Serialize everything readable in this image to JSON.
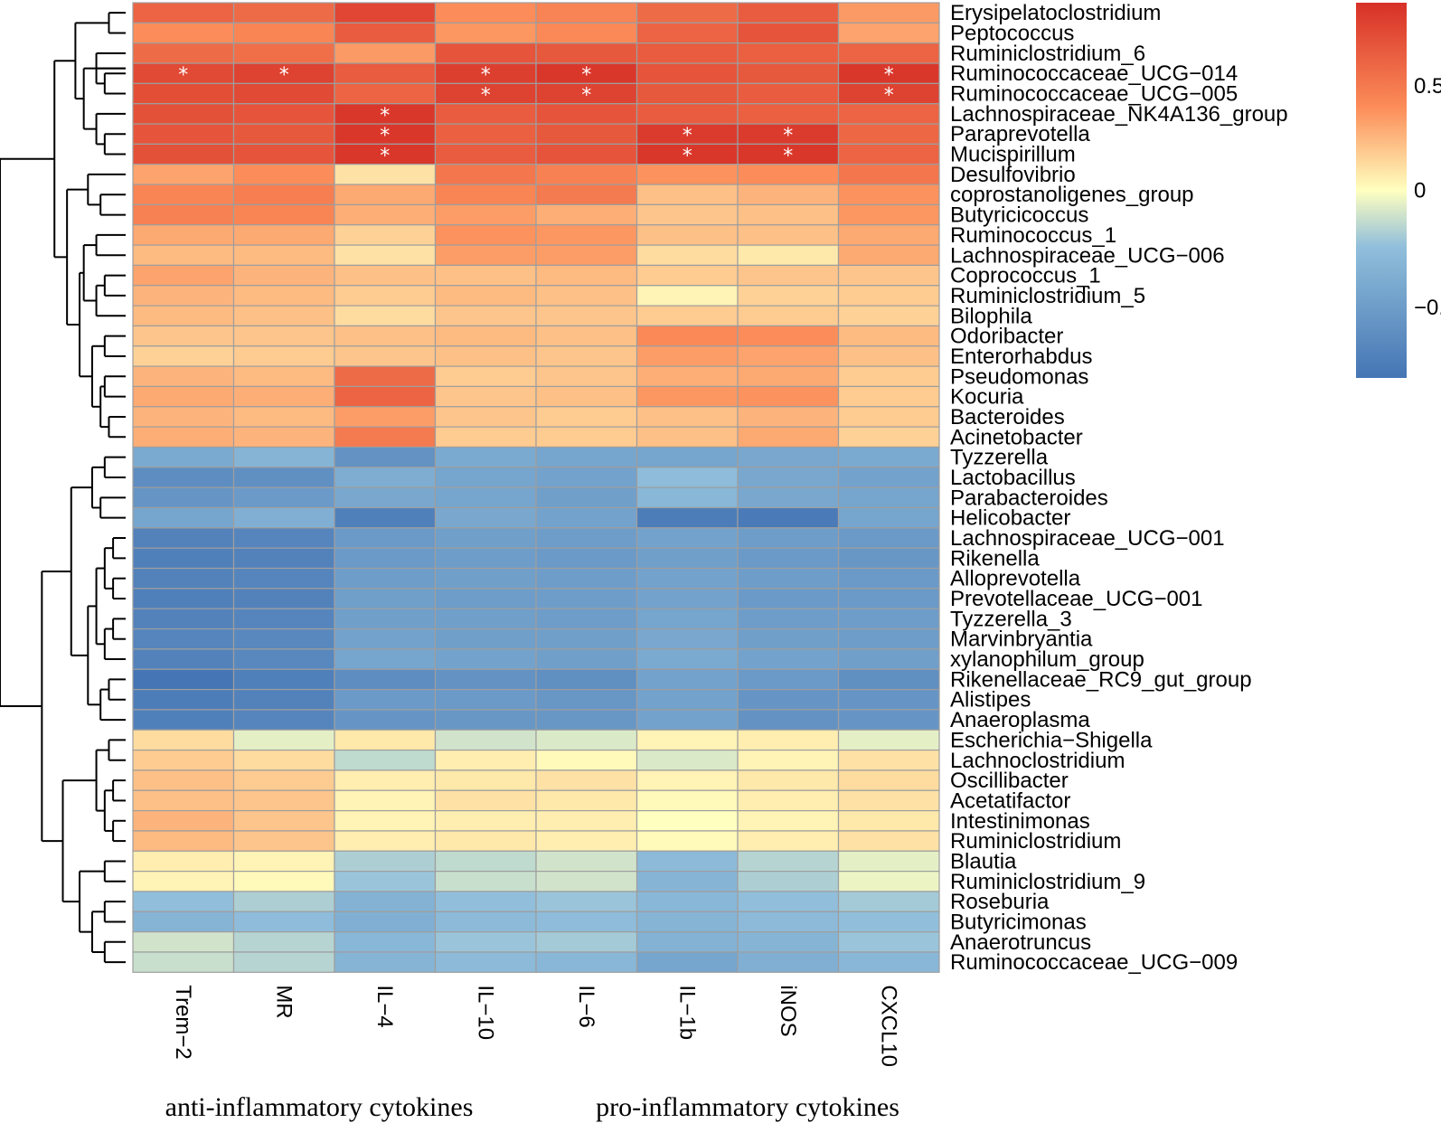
{
  "chart_data": {
    "type": "heatmap",
    "title": "",
    "columns": [
      "Trem−2",
      "MR",
      "IL−4",
      "IL−10",
      "IL−6",
      "IL−1b",
      "iNOS",
      "CXCL10"
    ],
    "rows": [
      "Erysipelatoclostridium",
      "Peptococcus",
      "Ruminiclostridium_6",
      "Ruminococcaceae_UCG−014",
      "Ruminococcaceae_UCG−005",
      "Lachnospiraceae_NK4A136_group",
      "Paraprevotella",
      "Mucispirillum",
      "Desulfovibrio",
      "coprostanoligenes_group",
      "Butyricicoccus",
      "Ruminococcus_1",
      "Lachnospiraceae_UCG−006",
      "Coprococcus_1",
      "Ruminiclostridium_5",
      "Bilophila",
      "Odoribacter",
      "Enterorhabdus",
      "Pseudomonas",
      "Kocuria",
      "Bacteroides",
      "Acinetobacter",
      "Tyzzerella",
      "Lactobacillus",
      "Parabacteroides",
      "Helicobacter",
      "Lachnospiraceae_UCG−001",
      "Rikenella",
      "Alloprevotella",
      "Prevotellaceae_UCG−001",
      "Tyzzerella_3",
      "Marvinbryantia",
      "xylanophilum_group",
      "Rikenellaceae_RC9_gut_group",
      "Alistipes",
      "Anaeroplasma",
      "Escherichia−Shigella",
      "Lachnoclostridium",
      "Oscillibacter",
      "Acetatifactor",
      "Intestinimonas",
      "Ruminiclostridium",
      "Blautia",
      "Ruminiclostridium_9",
      "Roseburia",
      "Butyricimonas",
      "Anaerotruncus",
      "Ruminococcaceae_UCG−009"
    ],
    "values": [
      [
        0.62,
        0.58,
        0.78,
        0.4,
        0.45,
        0.58,
        0.66,
        0.35
      ],
      [
        0.4,
        0.44,
        0.66,
        0.36,
        0.42,
        0.62,
        0.7,
        0.32
      ],
      [
        0.58,
        0.56,
        0.35,
        0.7,
        0.68,
        0.66,
        0.64,
        0.62
      ],
      [
        0.76,
        0.8,
        0.66,
        0.82,
        0.86,
        0.7,
        0.68,
        0.86
      ],
      [
        0.74,
        0.76,
        0.62,
        0.8,
        0.8,
        0.68,
        0.66,
        0.8
      ],
      [
        0.72,
        0.7,
        0.86,
        0.66,
        0.7,
        0.66,
        0.64,
        0.62
      ],
      [
        0.7,
        0.68,
        0.86,
        0.64,
        0.68,
        0.84,
        0.84,
        0.6
      ],
      [
        0.72,
        0.7,
        0.86,
        0.66,
        0.7,
        0.86,
        0.86,
        0.62
      ],
      [
        0.32,
        0.4,
        0.1,
        0.52,
        0.46,
        0.38,
        0.4,
        0.52
      ],
      [
        0.44,
        0.48,
        0.3,
        0.44,
        0.5,
        0.22,
        0.26,
        0.38
      ],
      [
        0.46,
        0.44,
        0.28,
        0.34,
        0.28,
        0.2,
        0.22,
        0.36
      ],
      [
        0.3,
        0.3,
        0.16,
        0.38,
        0.36,
        0.22,
        0.22,
        0.3
      ],
      [
        0.24,
        0.24,
        0.1,
        0.34,
        0.34,
        0.12,
        0.08,
        0.3
      ],
      [
        0.32,
        0.26,
        0.22,
        0.22,
        0.24,
        0.18,
        0.2,
        0.2
      ],
      [
        0.26,
        0.24,
        0.18,
        0.24,
        0.22,
        0.04,
        0.16,
        0.18
      ],
      [
        0.24,
        0.22,
        0.12,
        0.2,
        0.2,
        0.18,
        0.18,
        0.16
      ],
      [
        0.2,
        0.2,
        0.22,
        0.24,
        0.22,
        0.42,
        0.4,
        0.24
      ],
      [
        0.16,
        0.18,
        0.2,
        0.22,
        0.2,
        0.34,
        0.32,
        0.22
      ],
      [
        0.26,
        0.24,
        0.58,
        0.18,
        0.2,
        0.28,
        0.3,
        0.18
      ],
      [
        0.3,
        0.28,
        0.62,
        0.2,
        0.22,
        0.36,
        0.38,
        0.18
      ],
      [
        0.26,
        0.24,
        0.34,
        0.2,
        0.18,
        0.22,
        0.26,
        0.18
      ],
      [
        0.28,
        0.26,
        0.5,
        0.18,
        0.18,
        0.22,
        0.3,
        0.16
      ],
      [
        -0.4,
        -0.32,
        -0.58,
        -0.4,
        -0.44,
        -0.44,
        -0.42,
        -0.4
      ],
      [
        -0.62,
        -0.6,
        -0.38,
        -0.44,
        -0.46,
        -0.26,
        -0.42,
        -0.46
      ],
      [
        -0.56,
        -0.52,
        -0.42,
        -0.44,
        -0.48,
        -0.3,
        -0.42,
        -0.44
      ],
      [
        -0.44,
        -0.36,
        -0.72,
        -0.42,
        -0.46,
        -0.74,
        -0.76,
        -0.44
      ],
      [
        -0.7,
        -0.68,
        -0.52,
        -0.48,
        -0.5,
        -0.46,
        -0.5,
        -0.52
      ],
      [
        -0.72,
        -0.7,
        -0.52,
        -0.5,
        -0.52,
        -0.48,
        -0.52,
        -0.54
      ],
      [
        -0.7,
        -0.68,
        -0.5,
        -0.48,
        -0.5,
        -0.46,
        -0.5,
        -0.52
      ],
      [
        -0.72,
        -0.7,
        -0.48,
        -0.5,
        -0.5,
        -0.46,
        -0.52,
        -0.52
      ],
      [
        -0.7,
        -0.68,
        -0.48,
        -0.48,
        -0.5,
        -0.44,
        -0.5,
        -0.5
      ],
      [
        -0.68,
        -0.66,
        -0.46,
        -0.48,
        -0.48,
        -0.42,
        -0.48,
        -0.5
      ],
      [
        -0.7,
        -0.66,
        -0.44,
        -0.46,
        -0.48,
        -0.4,
        -0.46,
        -0.48
      ],
      [
        -0.8,
        -0.72,
        -0.62,
        -0.58,
        -0.6,
        -0.46,
        -0.52,
        -0.6
      ],
      [
        -0.74,
        -0.7,
        -0.52,
        -0.52,
        -0.54,
        -0.46,
        -0.56,
        -0.56
      ],
      [
        -0.72,
        -0.68,
        -0.56,
        -0.54,
        -0.54,
        -0.46,
        -0.58,
        -0.56
      ],
      [
        0.12,
        -0.06,
        0.08,
        -0.1,
        -0.08,
        0.04,
        0.06,
        -0.06
      ],
      [
        0.18,
        0.12,
        -0.14,
        0.06,
        0.02,
        -0.08,
        0.04,
        0.1
      ],
      [
        0.22,
        0.18,
        0.06,
        0.08,
        0.1,
        0.04,
        0.08,
        0.12
      ],
      [
        0.22,
        0.2,
        0.04,
        0.1,
        0.08,
        0.02,
        0.06,
        0.1
      ],
      [
        0.26,
        0.2,
        0.04,
        0.06,
        0.06,
        0.0,
        0.04,
        0.08
      ],
      [
        0.24,
        0.2,
        0.06,
        0.08,
        0.06,
        0.02,
        0.06,
        0.1
      ],
      [
        0.06,
        0.04,
        -0.18,
        -0.14,
        -0.1,
        -0.28,
        -0.16,
        -0.06
      ],
      [
        0.04,
        0.02,
        -0.22,
        -0.12,
        -0.1,
        -0.32,
        -0.18,
        -0.04
      ],
      [
        -0.24,
        -0.18,
        -0.34,
        -0.24,
        -0.22,
        -0.3,
        -0.24,
        -0.2
      ],
      [
        -0.32,
        -0.26,
        -0.36,
        -0.28,
        -0.26,
        -0.32,
        -0.28,
        -0.24
      ],
      [
        -0.1,
        -0.16,
        -0.3,
        -0.22,
        -0.2,
        -0.34,
        -0.32,
        -0.22
      ],
      [
        -0.12,
        -0.16,
        -0.32,
        -0.28,
        -0.3,
        -0.44,
        -0.36,
        -0.3
      ]
    ],
    "significance": [
      {
        "row": 3,
        "col": 0,
        "label": "*"
      },
      {
        "row": 3,
        "col": 1,
        "label": "*"
      },
      {
        "row": 3,
        "col": 3,
        "label": "*"
      },
      {
        "row": 3,
        "col": 4,
        "label": "*"
      },
      {
        "row": 3,
        "col": 7,
        "label": "*"
      },
      {
        "row": 4,
        "col": 3,
        "label": "*"
      },
      {
        "row": 4,
        "col": 4,
        "label": "*"
      },
      {
        "row": 4,
        "col": 7,
        "label": "*"
      },
      {
        "row": 5,
        "col": 2,
        "label": "*"
      },
      {
        "row": 6,
        "col": 2,
        "label": "*"
      },
      {
        "row": 6,
        "col": 5,
        "label": "*"
      },
      {
        "row": 6,
        "col": 6,
        "label": "*"
      },
      {
        "row": 7,
        "col": 2,
        "label": "*"
      },
      {
        "row": 7,
        "col": 5,
        "label": "*"
      },
      {
        "row": 7,
        "col": 6,
        "label": "*"
      }
    ],
    "colorbar": {
      "range": [
        -0.8,
        0.9
      ],
      "ticks": [
        {
          "value": 0.5,
          "label": "0.5"
        },
        {
          "value": 0,
          "label": "0"
        },
        {
          "value": -0.5,
          "label": "−0.5"
        }
      ],
      "low_color": "#4575b4",
      "mid_color": "#ffffbf",
      "high_color": "#d73027"
    },
    "column_groups": [
      {
        "label": "anti-inflammatory cytokines",
        "columns": [
          "Trem−2",
          "MR",
          "IL−4",
          "IL−10"
        ]
      },
      {
        "label": "pro-inflammatory cytokines",
        "columns": [
          "IL−6",
          "IL−1b",
          "iNOS",
          "CXCL10"
        ]
      }
    ],
    "dendrogram": {
      "merges": [
        [
          [
            0,
            1
          ],
          8
        ],
        [
          [
            3,
            4
          ],
          10
        ],
        [
          [
            2,
            "m1"
          ],
          14
        ],
        [
          [
            "m2"
          ],
          0
        ],
        [
          [
            6,
            7
          ],
          10
        ],
        [
          [
            5,
            "m4"
          ],
          14
        ],
        [
          [
            "m3",
            "m5"
          ],
          20
        ],
        [
          [
            "m0",
            "m6"
          ],
          24
        ],
        [
          [
            9,
            10
          ],
          12
        ],
        [
          [
            8,
            "m8"
          ],
          18
        ],
        [
          [
            11,
            12
          ],
          14
        ],
        [
          [
            13,
            14
          ],
          10
        ],
        [
          [
            "m11",
            15
          ],
          14
        ],
        [
          [
            "m10",
            "m12"
          ],
          20
        ],
        [
          [
            16,
            17
          ],
          10
        ],
        [
          [
            18,
            19
          ],
          10
        ],
        [
          [
            20,
            21
          ],
          8
        ],
        [
          [
            "m15",
            "m16"
          ],
          12
        ],
        [
          [
            "m14",
            "m17"
          ],
          16
        ],
        [
          [
            "m13",
            "m18"
          ],
          22
        ],
        [
          [
            "m9",
            "m19"
          ],
          28
        ],
        [
          [
            "m7",
            "m20"
          ],
          34
        ],
        [
          [
            22,
            23
          ],
          10
        ],
        [
          [
            24,
            25
          ],
          12
        ],
        [
          [
            "m22",
            "m23"
          ],
          16
        ],
        [
          [
            26,
            27
          ],
          6
        ],
        [
          [
            28,
            29
          ],
          6
        ],
        [
          [
            "m25",
            "m26"
          ],
          10
        ],
        [
          [
            30,
            31
          ],
          6
        ],
        [
          [
            "m28",
            32
          ],
          10
        ],
        [
          [
            "m27",
            "m29"
          ],
          14
        ],
        [
          [
            33,
            34
          ],
          8
        ],
        [
          [
            "m31",
            35
          ],
          12
        ],
        [
          [
            "m30",
            "m32"
          ],
          18
        ],
        [
          [
            "m24",
            "m33"
          ],
          26
        ],
        [
          [
            36,
            37
          ],
          8
        ],
        [
          [
            38,
            39
          ],
          6
        ],
        [
          [
            40,
            41
          ],
          6
        ],
        [
          [
            "m36",
            "m37"
          ],
          10
        ],
        [
          [
            "m35",
            "m38"
          ],
          14
        ],
        [
          [
            42,
            43
          ],
          10
        ],
        [
          [
            44,
            45
          ],
          10
        ],
        [
          [
            46,
            47
          ],
          10
        ],
        [
          [
            "m41",
            "m42"
          ],
          16
        ],
        [
          [
            "m40",
            "m43"
          ],
          22
        ],
        [
          [
            "m39",
            "m44"
          ],
          30
        ],
        [
          [
            "m34",
            "m45"
          ],
          40
        ],
        [
          [
            "m21",
            "m46"
          ],
          60
        ]
      ]
    }
  }
}
